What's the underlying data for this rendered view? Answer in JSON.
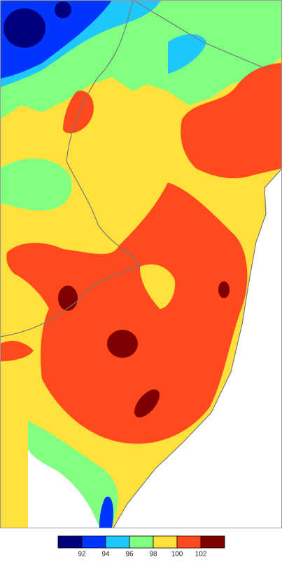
{
  "legend": {
    "colors": [
      "#00007f",
      "#0035ff",
      "#1ec8ff",
      "#80ff80",
      "#ffe13c",
      "#ff4a1e",
      "#7f0000"
    ],
    "ticks": [
      92,
      94,
      96,
      98,
      100,
      102
    ]
  }
}
